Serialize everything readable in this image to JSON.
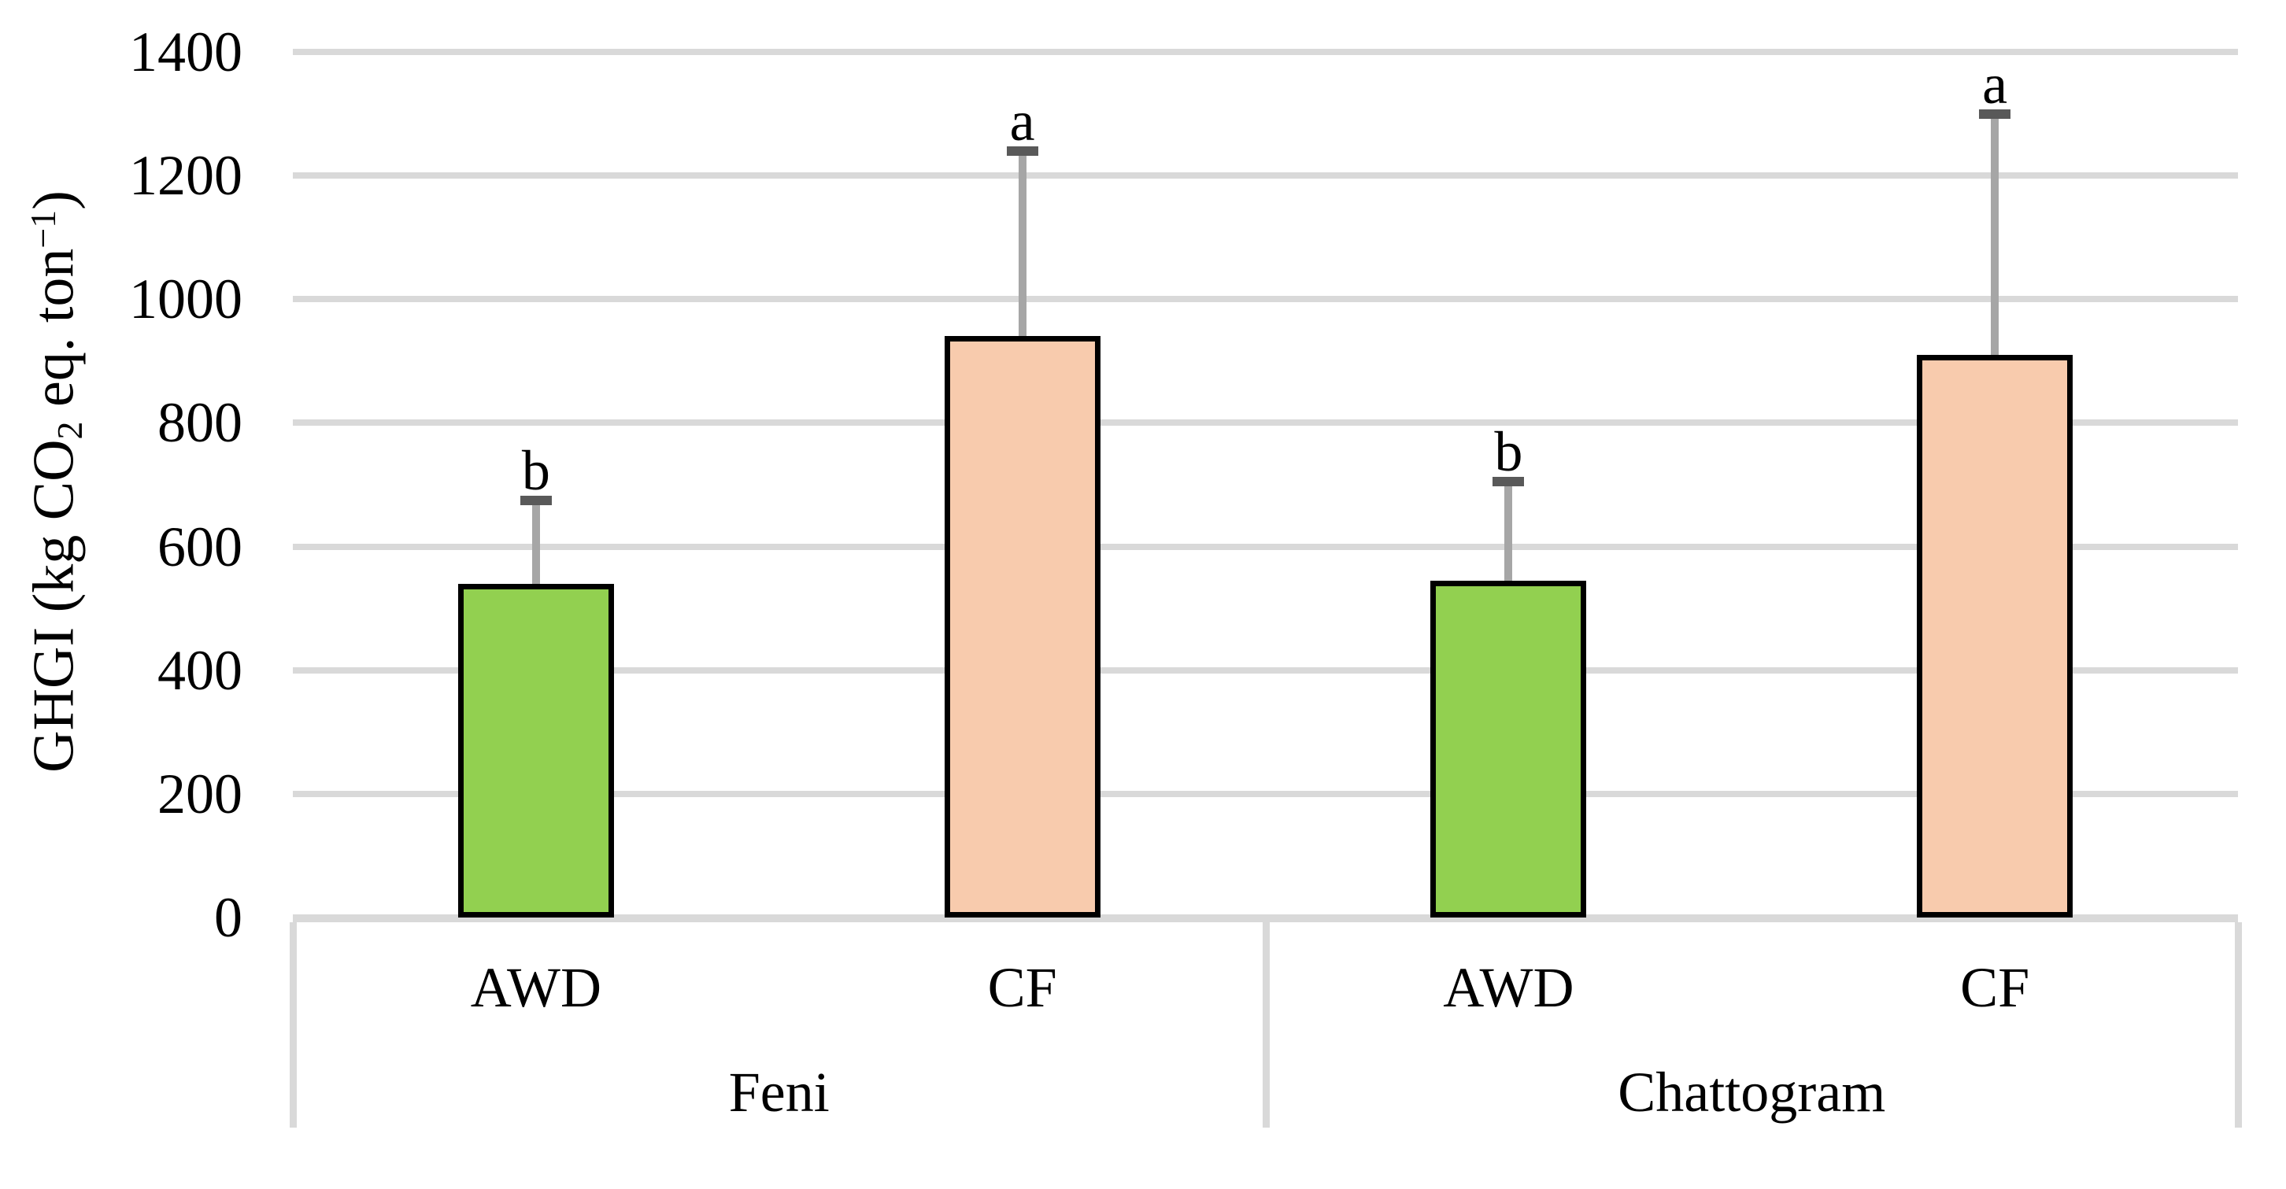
{
  "figure": {
    "kind": "grouped-bar-figure",
    "background": "#ffffff"
  },
  "chart_data": {
    "type": "bar",
    "title": "",
    "ylabel": "GHGI (kg CO2 eq. ton-1)",
    "ylabel_parts": {
      "pre": "GHGI (kg CO",
      "sub": "2",
      "mid": " eq. ton",
      "sup": "−1",
      "post": ")"
    },
    "xlabel": "",
    "ylim": [
      0,
      1400
    ],
    "yticks": [
      0,
      200,
      400,
      600,
      800,
      1000,
      1200,
      1400
    ],
    "grid": true,
    "legend": "none",
    "x_levels": [
      "treatment",
      "district"
    ],
    "groups": [
      {
        "label": "Feni",
        "bars": [
          {
            "category": "AWD",
            "value": 540,
            "error_top": 675,
            "sig_letter": "b",
            "fill": "#92D050"
          },
          {
            "category": "CF",
            "value": 940,
            "error_top": 1240,
            "sig_letter": "a",
            "fill": "#F8CBAD"
          }
        ]
      },
      {
        "label": "Chattogram",
        "bars": [
          {
            "category": "AWD",
            "value": 545,
            "error_top": 705,
            "sig_letter": "b",
            "fill": "#92D050"
          },
          {
            "category": "CF",
            "value": 910,
            "error_top": 1300,
            "sig_letter": "a",
            "fill": "#F8CBAD"
          }
        ]
      }
    ],
    "colors": {
      "awd_fill": "#92D050",
      "cf_fill": "#F8CBAD",
      "bar_border": "#000000",
      "gridline": "#D9D9D9",
      "axis_line": "#D9D9D9",
      "error_line": "#A6A6A6",
      "error_cap": "#595959",
      "text": "#000000"
    }
  }
}
